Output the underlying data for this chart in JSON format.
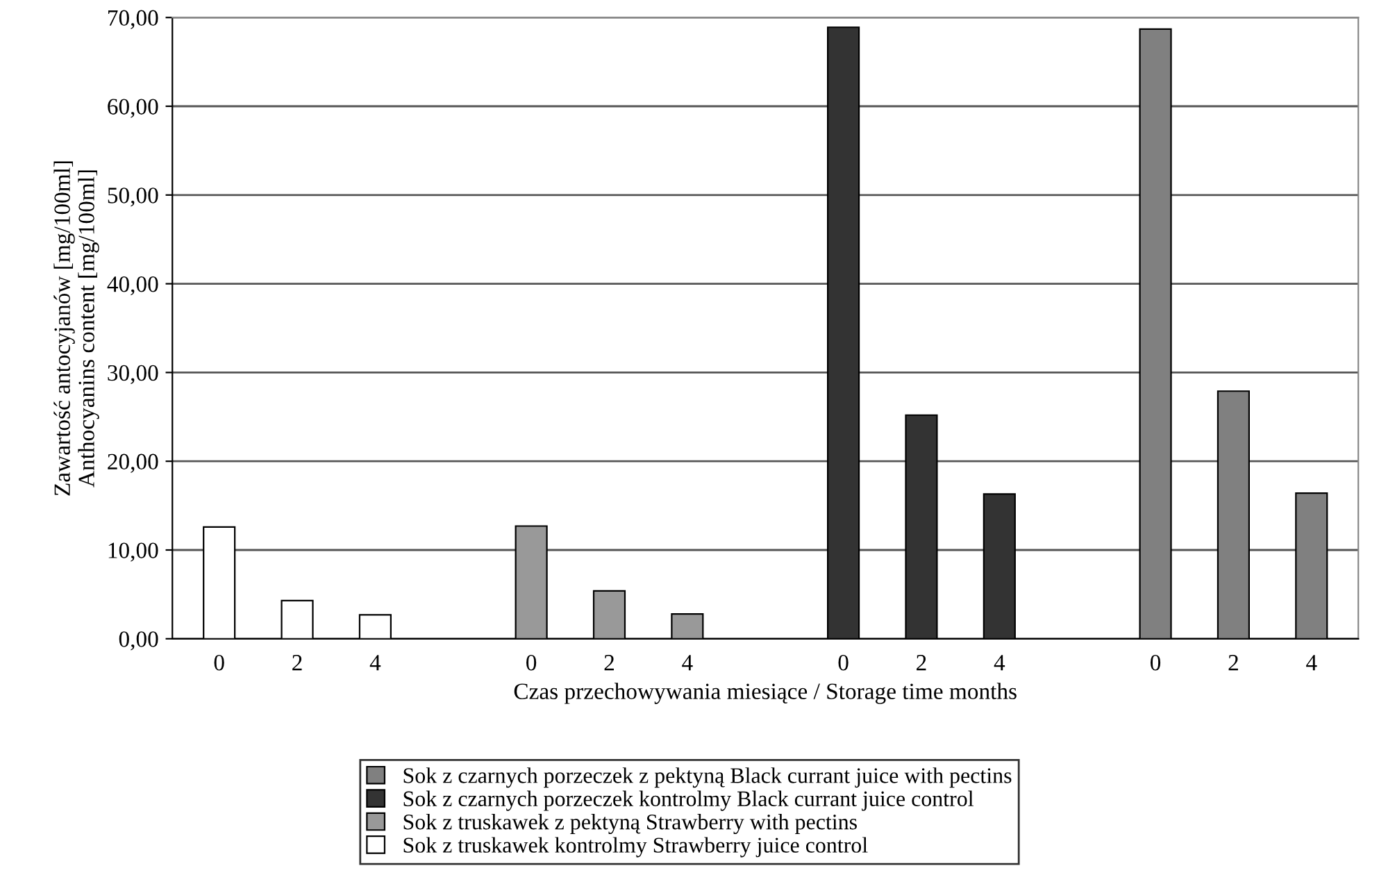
{
  "chart_data": {
    "type": "bar",
    "xlabel": "Czas przechowywania miesiące / Storage time months",
    "ylabel": "Zawartość antocyjanów [mg/100ml]\nAnthocyanins content [mg/100ml]",
    "categories": [
      "0",
      "2",
      "4",
      null,
      "0",
      "2",
      "4",
      null,
      "0",
      "2",
      "4",
      null,
      "0",
      "2",
      "4"
    ],
    "series": [
      {
        "name": "Sok z czarnych porzeczek z pektyną Black currant juice with pectins",
        "color": "#808080",
        "values": [
          null,
          null,
          null,
          null,
          null,
          null,
          null,
          null,
          null,
          null,
          null,
          null,
          68.7,
          27.9,
          16.4
        ]
      },
      {
        "name": "Sok z czarnych porzeczek kontrolmy Black currant juice control",
        "color": "#333333",
        "values": [
          null,
          null,
          null,
          null,
          null,
          null,
          null,
          null,
          68.9,
          25.2,
          16.3,
          null,
          null,
          null,
          null
        ]
      },
      {
        "name": "Sok z truskawek z pektyną Strawberry with pectins",
        "color": "#999999",
        "values": [
          null,
          null,
          null,
          null,
          12.7,
          5.4,
          2.8,
          null,
          null,
          null,
          null,
          null,
          null,
          null,
          null
        ]
      },
      {
        "name": "Sok z truskawek kontrolmy Strawberry juice control",
        "color": "#ffffff",
        "values": [
          12.6,
          4.3,
          2.7,
          null,
          null,
          null,
          null,
          null,
          null,
          null,
          null,
          null,
          null,
          null,
          null
        ]
      }
    ],
    "ylim": [
      0,
      70
    ],
    "yticks": [
      {
        "value": 0,
        "label": "0,00"
      },
      {
        "value": 10,
        "label": "10,00"
      },
      {
        "value": 20,
        "label": "20,00"
      },
      {
        "value": 30,
        "label": "30,00"
      },
      {
        "value": 40,
        "label": "40,00"
      },
      {
        "value": 50,
        "label": "50,00"
      },
      {
        "value": 60,
        "label": "60,00"
      },
      {
        "value": 70,
        "label": "70,00"
      }
    ],
    "grid": "y",
    "legend": "bottom"
  }
}
